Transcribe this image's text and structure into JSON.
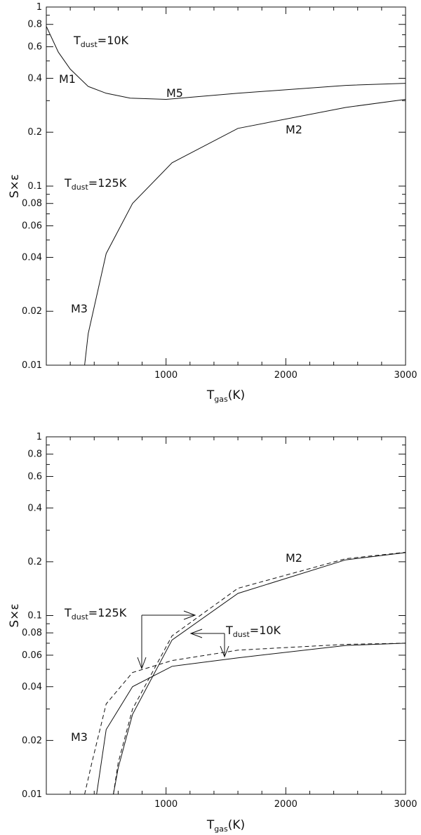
{
  "chart_data": [
    {
      "type": "line",
      "xlabel": "T",
      "xlabel_sub": "gas",
      "xlabel_unit": "(K)",
      "ylabel": "S×ε",
      "xlim": [
        0,
        3000
      ],
      "ylim": [
        0.01,
        1
      ],
      "yscale": "log",
      "x_ticks": [
        "1000",
        "2000",
        "3000"
      ],
      "y_ticks": [
        "0.01",
        "0.02",
        "0.04",
        "0.06",
        "0.08",
        "0.1",
        "0.2",
        "0.4",
        "0.6",
        "0.8",
        "1"
      ],
      "grid": false,
      "series": [
        {
          "style": "solid",
          "x": [
            0,
            100,
            200,
            350,
            500,
            700,
            1000,
            1600,
            2500,
            3000
          ],
          "y": [
            0.78,
            0.56,
            0.45,
            0.36,
            0.33,
            0.31,
            0.305,
            0.33,
            0.365,
            0.375
          ]
        },
        {
          "style": "solid",
          "x": [
            320,
            350,
            500,
            720,
            1050,
            1600,
            2500,
            3000
          ],
          "y": [
            0.01,
            0.015,
            0.042,
            0.08,
            0.135,
            0.21,
            0.275,
            0.305
          ]
        }
      ],
      "annotations": [
        {
          "main": "T",
          "sub": "dust",
          "rest": "=10K"
        },
        {
          "main": "M1",
          "sub": "",
          "rest": ""
        },
        {
          "main": "M5",
          "sub": "",
          "rest": ""
        },
        {
          "main": "M2",
          "sub": "",
          "rest": ""
        },
        {
          "main": "T",
          "sub": "dust",
          "rest": "=125K"
        },
        {
          "main": "M3",
          "sub": "",
          "rest": ""
        }
      ]
    },
    {
      "type": "line",
      "xlabel": "T",
      "xlabel_sub": "gas",
      "xlabel_unit": "(K)",
      "ylabel": "S×ε",
      "xlim": [
        0,
        3000
      ],
      "ylim": [
        0.01,
        1
      ],
      "yscale": "log",
      "x_ticks": [
        "1000",
        "2000",
        "3000"
      ],
      "y_ticks": [
        "0.01",
        "0.02",
        "0.04",
        "0.06",
        "0.08",
        "0.1",
        "0.2",
        "0.4",
        "0.6",
        "0.8",
        "1"
      ],
      "grid": false,
      "series": [
        {
          "style": "solid",
          "x": [
            420,
            500,
            720,
            1050,
            1600,
            2500,
            3000
          ],
          "y": [
            0.01,
            0.023,
            0.04,
            0.052,
            0.058,
            0.068,
            0.07
          ]
        },
        {
          "style": "dashed",
          "x": [
            320,
            380,
            500,
            720,
            1050,
            1600,
            2500,
            3000
          ],
          "y": [
            0.01,
            0.015,
            0.032,
            0.048,
            0.056,
            0.064,
            0.069,
            0.07
          ]
        },
        {
          "style": "solid",
          "x": [
            560,
            600,
            720,
            1050,
            1600,
            2500,
            3000
          ],
          "y": [
            0.01,
            0.014,
            0.028,
            0.073,
            0.133,
            0.205,
            0.225
          ]
        },
        {
          "style": "dashed",
          "x": [
            560,
            600,
            720,
            1050,
            1600,
            2500,
            3000
          ],
          "y": [
            0.01,
            0.015,
            0.03,
            0.077,
            0.142,
            0.208,
            0.226
          ]
        }
      ],
      "annotations": [
        {
          "main": "M2",
          "sub": "",
          "rest": ""
        },
        {
          "main": "T",
          "sub": "dust",
          "rest": "=125K"
        },
        {
          "main": "T",
          "sub": "dust",
          "rest": "=10K"
        },
        {
          "main": "M3",
          "sub": "",
          "rest": ""
        }
      ]
    }
  ]
}
